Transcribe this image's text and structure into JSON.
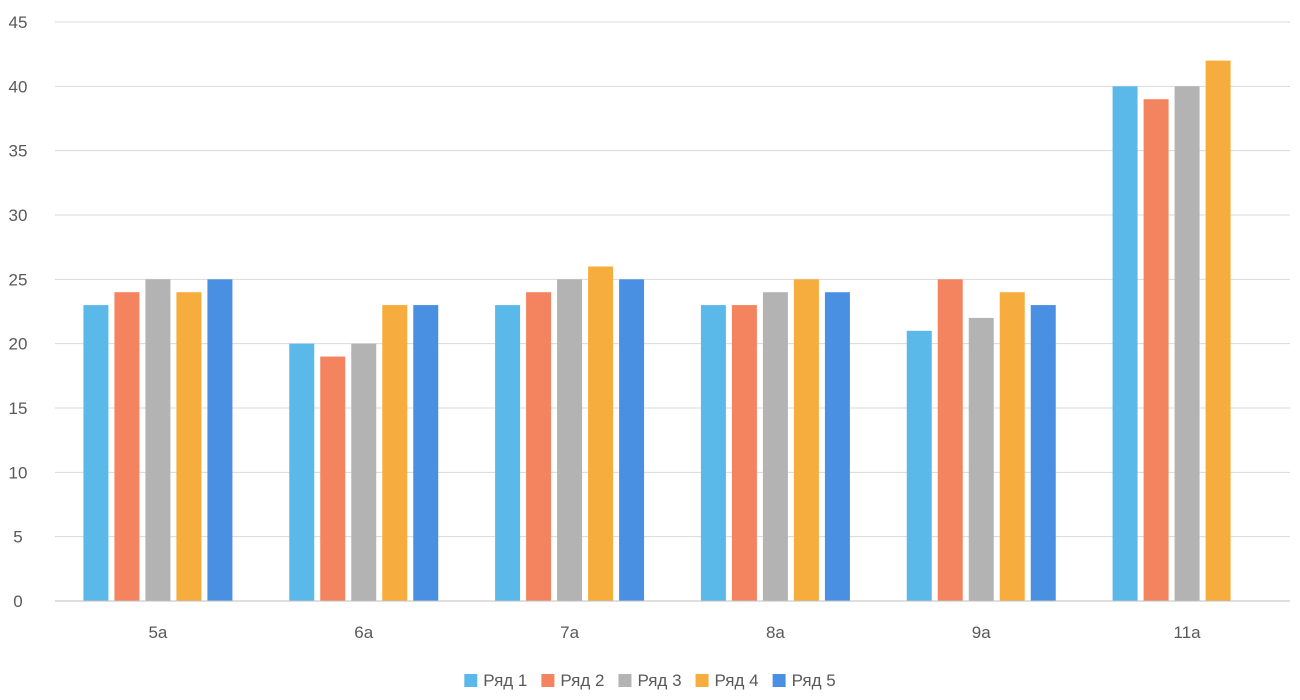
{
  "chart_data": {
    "type": "bar",
    "title": "",
    "xlabel": "",
    "ylabel": "",
    "categories": [
      "5а",
      "6а",
      "7а",
      "8а",
      "9а",
      "11а"
    ],
    "ylim": [
      0,
      45
    ],
    "yticks": [
      0,
      5,
      10,
      15,
      20,
      25,
      30,
      35,
      40,
      45
    ],
    "grid": true,
    "legend_position": "bottom",
    "series": [
      {
        "name": "Ряд 1",
        "color": "#5bb9ea",
        "values": [
          23,
          20,
          23,
          23,
          21,
          40
        ]
      },
      {
        "name": "Ряд 2",
        "color": "#f4845f",
        "values": [
          24,
          19,
          24,
          23,
          25,
          39
        ]
      },
      {
        "name": "Ряд 3",
        "color": "#b3b3b3",
        "values": [
          25,
          20,
          25,
          24,
          22,
          40
        ]
      },
      {
        "name": "Ряд 4",
        "color": "#f7ad3e",
        "values": [
          24,
          23,
          26,
          25,
          24,
          42
        ]
      },
      {
        "name": "Ряд 5",
        "color": "#4a90e2",
        "values": [
          25,
          23,
          25,
          24,
          23,
          null
        ]
      }
    ]
  }
}
